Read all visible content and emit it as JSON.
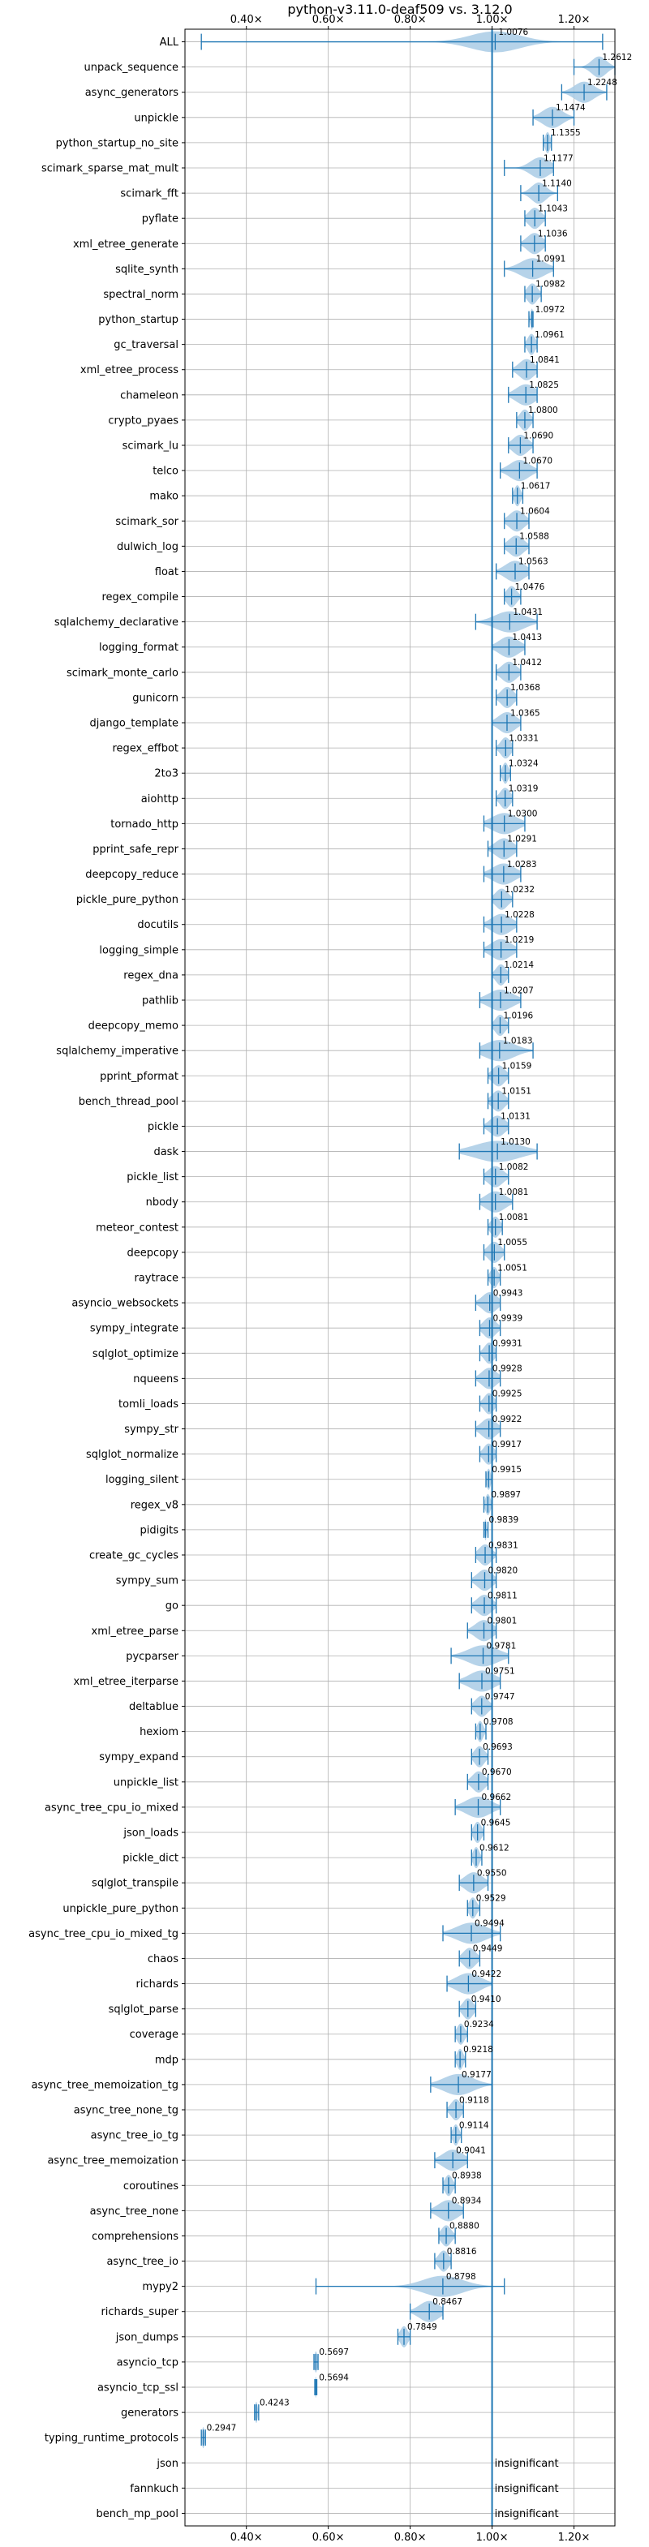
{
  "chart_data": {
    "type": "violin",
    "title": "python-v3.11.0-deaf509 vs. 3.12.0",
    "xlim": [
      0.25,
      1.3
    ],
    "x_ticks": [
      {
        "value": 0.4,
        "label": "0.40×"
      },
      {
        "value": 0.6,
        "label": "0.60×"
      },
      {
        "value": 0.8,
        "label": "0.80×"
      },
      {
        "value": 1.0,
        "label": "1.00×"
      },
      {
        "value": 1.2,
        "label": "1.20×"
      }
    ],
    "reference_line": 1.0,
    "grid": true,
    "colors": {
      "violin": "#a9cbe5",
      "whisker": "#1f77b4",
      "axis": "#000000",
      "grid": "#b0b0b0"
    },
    "insignificant_label": "insignificant",
    "benchmarks": [
      {
        "name": "ALL",
        "value": 1.0076,
        "label": "1.0076",
        "min": 0.29,
        "max": 1.27,
        "spread": 0.1
      },
      {
        "name": "unpack_sequence",
        "value": 1.2612,
        "label": "1.2612",
        "min": 1.2,
        "max": 1.3,
        "spread": 0.03
      },
      {
        "name": "async_generators",
        "value": 1.2248,
        "label": "1.2248",
        "min": 1.17,
        "max": 1.28,
        "spread": 0.04
      },
      {
        "name": "unpickle",
        "value": 1.1474,
        "label": "1.1474",
        "min": 1.1,
        "max": 1.2,
        "spread": 0.04
      },
      {
        "name": "python_startup_no_site",
        "value": 1.1355,
        "label": "1.1355",
        "min": 1.125,
        "max": 1.145,
        "spread": 0.01
      },
      {
        "name": "scimark_sparse_mat_mult",
        "value": 1.1177,
        "label": "1.1177",
        "min": 1.03,
        "max": 1.15,
        "spread": 0.04
      },
      {
        "name": "scimark_fft",
        "value": 1.114,
        "label": "1.1140",
        "min": 1.07,
        "max": 1.16,
        "spread": 0.03
      },
      {
        "name": "pyflate",
        "value": 1.1043,
        "label": "1.1043",
        "min": 1.08,
        "max": 1.13,
        "spread": 0.025
      },
      {
        "name": "xml_etree_generate",
        "value": 1.1036,
        "label": "1.1036",
        "min": 1.07,
        "max": 1.13,
        "spread": 0.03
      },
      {
        "name": "sqlite_synth",
        "value": 1.0991,
        "label": "1.0991",
        "min": 1.03,
        "max": 1.15,
        "spread": 0.05
      },
      {
        "name": "spectral_norm",
        "value": 1.0982,
        "label": "1.0982",
        "min": 1.08,
        "max": 1.12,
        "spread": 0.02
      },
      {
        "name": "python_startup",
        "value": 1.0972,
        "label": "1.0972",
        "min": 1.09,
        "max": 1.1,
        "spread": 0.006
      },
      {
        "name": "gc_traversal",
        "value": 1.0961,
        "label": "1.0961",
        "min": 1.08,
        "max": 1.11,
        "spread": 0.015
      },
      {
        "name": "xml_etree_process",
        "value": 1.0841,
        "label": "1.0841",
        "min": 1.05,
        "max": 1.11,
        "spread": 0.03
      },
      {
        "name": "chameleon",
        "value": 1.0825,
        "label": "1.0825",
        "min": 1.04,
        "max": 1.11,
        "spread": 0.04
      },
      {
        "name": "crypto_pyaes",
        "value": 1.08,
        "label": "1.0800",
        "min": 1.06,
        "max": 1.1,
        "spread": 0.02
      },
      {
        "name": "scimark_lu",
        "value": 1.069,
        "label": "1.0690",
        "min": 1.04,
        "max": 1.1,
        "spread": 0.03
      },
      {
        "name": "telco",
        "value": 1.067,
        "label": "1.0670",
        "min": 1.02,
        "max": 1.11,
        "spread": 0.04
      },
      {
        "name": "mako",
        "value": 1.0617,
        "label": "1.0617",
        "min": 1.05,
        "max": 1.075,
        "spread": 0.012
      },
      {
        "name": "scimark_sor",
        "value": 1.0604,
        "label": "1.0604",
        "min": 1.03,
        "max": 1.09,
        "spread": 0.03
      },
      {
        "name": "dulwich_log",
        "value": 1.0588,
        "label": "1.0588",
        "min": 1.03,
        "max": 1.09,
        "spread": 0.03
      },
      {
        "name": "float",
        "value": 1.0563,
        "label": "1.0563",
        "min": 1.01,
        "max": 1.09,
        "spread": 0.04
      },
      {
        "name": "regex_compile",
        "value": 1.0476,
        "label": "1.0476",
        "min": 1.03,
        "max": 1.07,
        "spread": 0.02
      },
      {
        "name": "sqlalchemy_declarative",
        "value": 1.0431,
        "label": "1.0431",
        "min": 0.96,
        "max": 1.11,
        "spread": 0.06
      },
      {
        "name": "logging_format",
        "value": 1.0413,
        "label": "1.0413",
        "min": 1.0,
        "max": 1.08,
        "spread": 0.04
      },
      {
        "name": "scimark_monte_carlo",
        "value": 1.0412,
        "label": "1.0412",
        "min": 1.01,
        "max": 1.07,
        "spread": 0.03
      },
      {
        "name": "gunicorn",
        "value": 1.0368,
        "label": "1.0368",
        "min": 1.01,
        "max": 1.06,
        "spread": 0.025
      },
      {
        "name": "django_template",
        "value": 1.0365,
        "label": "1.0365",
        "min": 1.0,
        "max": 1.07,
        "spread": 0.035
      },
      {
        "name": "regex_effbot",
        "value": 1.0331,
        "label": "1.0331",
        "min": 1.01,
        "max": 1.05,
        "spread": 0.02
      },
      {
        "name": "2to3",
        "value": 1.0324,
        "label": "1.0324",
        "min": 1.02,
        "max": 1.045,
        "spread": 0.012
      },
      {
        "name": "aiohttp",
        "value": 1.0319,
        "label": "1.0319",
        "min": 1.01,
        "max": 1.05,
        "spread": 0.02
      },
      {
        "name": "tornado_http",
        "value": 1.03,
        "label": "1.0300",
        "min": 0.98,
        "max": 1.08,
        "spread": 0.05
      },
      {
        "name": "pprint_safe_repr",
        "value": 1.0291,
        "label": "1.0291",
        "min": 0.99,
        "max": 1.06,
        "spread": 0.035
      },
      {
        "name": "deepcopy_reduce",
        "value": 1.0283,
        "label": "1.0283",
        "min": 0.98,
        "max": 1.07,
        "spread": 0.045
      },
      {
        "name": "pickle_pure_python",
        "value": 1.0232,
        "label": "1.0232",
        "min": 1.0,
        "max": 1.05,
        "spread": 0.025
      },
      {
        "name": "docutils",
        "value": 1.0228,
        "label": "1.0228",
        "min": 0.98,
        "max": 1.06,
        "spread": 0.04
      },
      {
        "name": "logging_simple",
        "value": 1.0219,
        "label": "1.0219",
        "min": 0.98,
        "max": 1.06,
        "spread": 0.04
      },
      {
        "name": "regex_dna",
        "value": 1.0214,
        "label": "1.0214",
        "min": 1.0,
        "max": 1.04,
        "spread": 0.02
      },
      {
        "name": "pathlib",
        "value": 1.0207,
        "label": "1.0207",
        "min": 0.97,
        "max": 1.07,
        "spread": 0.05
      },
      {
        "name": "deepcopy_memo",
        "value": 1.0196,
        "label": "1.0196",
        "min": 1.0,
        "max": 1.04,
        "spread": 0.02
      },
      {
        "name": "sqlalchemy_imperative",
        "value": 1.0183,
        "label": "1.0183",
        "min": 0.97,
        "max": 1.1,
        "spread": 0.06
      },
      {
        "name": "pprint_pformat",
        "value": 1.0159,
        "label": "1.0159",
        "min": 0.99,
        "max": 1.04,
        "spread": 0.025
      },
      {
        "name": "bench_thread_pool",
        "value": 1.0151,
        "label": "1.0151",
        "min": 0.99,
        "max": 1.04,
        "spread": 0.025
      },
      {
        "name": "pickle",
        "value": 1.0131,
        "label": "1.0131",
        "min": 0.98,
        "max": 1.04,
        "spread": 0.03
      },
      {
        "name": "dask",
        "value": 1.013,
        "label": "1.0130",
        "min": 0.92,
        "max": 1.11,
        "spread": 0.09
      },
      {
        "name": "pickle_list",
        "value": 1.0082,
        "label": "1.0082",
        "min": 0.98,
        "max": 1.04,
        "spread": 0.03
      },
      {
        "name": "nbody",
        "value": 1.0081,
        "label": "1.0081",
        "min": 0.97,
        "max": 1.05,
        "spread": 0.04
      },
      {
        "name": "meteor_contest",
        "value": 1.0081,
        "label": "1.0081",
        "min": 0.99,
        "max": 1.025,
        "spread": 0.018
      },
      {
        "name": "deepcopy",
        "value": 1.0055,
        "label": "1.0055",
        "min": 0.98,
        "max": 1.03,
        "spread": 0.025
      },
      {
        "name": "raytrace",
        "value": 1.0051,
        "label": "1.0051",
        "min": 0.99,
        "max": 1.02,
        "spread": 0.015
      },
      {
        "name": "asyncio_websockets",
        "value": 0.9943,
        "label": "0.9943",
        "min": 0.96,
        "max": 1.02,
        "spread": 0.03
      },
      {
        "name": "sympy_integrate",
        "value": 0.9939,
        "label": "0.9939",
        "min": 0.97,
        "max": 1.02,
        "spread": 0.025
      },
      {
        "name": "sqlglot_optimize",
        "value": 0.9931,
        "label": "0.9931",
        "min": 0.97,
        "max": 1.01,
        "spread": 0.02
      },
      {
        "name": "nqueens",
        "value": 0.9928,
        "label": "0.9928",
        "min": 0.96,
        "max": 1.02,
        "spread": 0.03
      },
      {
        "name": "tomli_loads",
        "value": 0.9925,
        "label": "0.9925",
        "min": 0.97,
        "max": 1.01,
        "spread": 0.02
      },
      {
        "name": "sympy_str",
        "value": 0.9922,
        "label": "0.9922",
        "min": 0.96,
        "max": 1.02,
        "spread": 0.03
      },
      {
        "name": "sqlglot_normalize",
        "value": 0.9917,
        "label": "0.9917",
        "min": 0.97,
        "max": 1.01,
        "spread": 0.02
      },
      {
        "name": "logging_silent",
        "value": 0.9915,
        "label": "0.9915",
        "min": 0.985,
        "max": 1.0,
        "spread": 0.008
      },
      {
        "name": "regex_v8",
        "value": 0.9897,
        "label": "0.9897",
        "min": 0.98,
        "max": 1.0,
        "spread": 0.01
      },
      {
        "name": "pidigits",
        "value": 0.9839,
        "label": "0.9839",
        "min": 0.98,
        "max": 0.99,
        "spread": 0.004
      },
      {
        "name": "create_gc_cycles",
        "value": 0.9831,
        "label": "0.9831",
        "min": 0.96,
        "max": 1.01,
        "spread": 0.025
      },
      {
        "name": "sympy_sum",
        "value": 0.982,
        "label": "0.9820",
        "min": 0.95,
        "max": 1.01,
        "spread": 0.03
      },
      {
        "name": "go",
        "value": 0.9811,
        "label": "0.9811",
        "min": 0.95,
        "max": 1.01,
        "spread": 0.03
      },
      {
        "name": "xml_etree_parse",
        "value": 0.9801,
        "label": "0.9801",
        "min": 0.94,
        "max": 1.01,
        "spread": 0.035
      },
      {
        "name": "pycparser",
        "value": 0.9781,
        "label": "0.9781",
        "min": 0.9,
        "max": 1.04,
        "spread": 0.06
      },
      {
        "name": "xml_etree_iterparse",
        "value": 0.9751,
        "label": "0.9751",
        "min": 0.92,
        "max": 1.02,
        "spread": 0.05
      },
      {
        "name": "deltablue",
        "value": 0.9747,
        "label": "0.9747",
        "min": 0.95,
        "max": 1.0,
        "spread": 0.025
      },
      {
        "name": "hexiom",
        "value": 0.9708,
        "label": "0.9708",
        "min": 0.96,
        "max": 0.985,
        "spread": 0.012
      },
      {
        "name": "sympy_expand",
        "value": 0.9693,
        "label": "0.9693",
        "min": 0.95,
        "max": 0.99,
        "spread": 0.02
      },
      {
        "name": "unpickle_list",
        "value": 0.967,
        "label": "0.9670",
        "min": 0.94,
        "max": 0.99,
        "spread": 0.025
      },
      {
        "name": "async_tree_cpu_io_mixed",
        "value": 0.9662,
        "label": "0.9662",
        "min": 0.91,
        "max": 1.02,
        "spread": 0.05
      },
      {
        "name": "json_loads",
        "value": 0.9645,
        "label": "0.9645",
        "min": 0.95,
        "max": 0.98,
        "spread": 0.015
      },
      {
        "name": "pickle_dict",
        "value": 0.9612,
        "label": "0.9612",
        "min": 0.95,
        "max": 0.975,
        "spread": 0.012
      },
      {
        "name": "sqlglot_transpile",
        "value": 0.955,
        "label": "0.9550",
        "min": 0.92,
        "max": 0.99,
        "spread": 0.035
      },
      {
        "name": "unpickle_pure_python",
        "value": 0.9529,
        "label": "0.9529",
        "min": 0.94,
        "max": 0.97,
        "spread": 0.015
      },
      {
        "name": "async_tree_cpu_io_mixed_tg",
        "value": 0.9494,
        "label": "0.9494",
        "min": 0.88,
        "max": 1.02,
        "spread": 0.06
      },
      {
        "name": "chaos",
        "value": 0.9449,
        "label": "0.9449",
        "min": 0.92,
        "max": 0.97,
        "spread": 0.025
      },
      {
        "name": "richards",
        "value": 0.9422,
        "label": "0.9422",
        "min": 0.89,
        "max": 1.0,
        "spread": 0.05
      },
      {
        "name": "sqlglot_parse",
        "value": 0.941,
        "label": "0.9410",
        "min": 0.92,
        "max": 0.96,
        "spread": 0.02
      },
      {
        "name": "coverage",
        "value": 0.9234,
        "label": "0.9234",
        "min": 0.91,
        "max": 0.94,
        "spread": 0.015
      },
      {
        "name": "mdp",
        "value": 0.9218,
        "label": "0.9218",
        "min": 0.91,
        "max": 0.935,
        "spread": 0.012
      },
      {
        "name": "async_tree_memoization_tg",
        "value": 0.9177,
        "label": "0.9177",
        "min": 0.85,
        "max": 1.0,
        "spread": 0.06
      },
      {
        "name": "async_tree_none_tg",
        "value": 0.9118,
        "label": "0.9118",
        "min": 0.89,
        "max": 0.93,
        "spread": 0.02
      },
      {
        "name": "async_tree_io_tg",
        "value": 0.9114,
        "label": "0.9114",
        "min": 0.9,
        "max": 0.925,
        "spread": 0.012
      },
      {
        "name": "async_tree_memoization",
        "value": 0.9041,
        "label": "0.9041",
        "min": 0.86,
        "max": 0.94,
        "spread": 0.04
      },
      {
        "name": "coroutines",
        "value": 0.8938,
        "label": "0.8938",
        "min": 0.88,
        "max": 0.91,
        "spread": 0.015
      },
      {
        "name": "async_tree_none",
        "value": 0.8934,
        "label": "0.8934",
        "min": 0.85,
        "max": 0.93,
        "spread": 0.04
      },
      {
        "name": "comprehensions",
        "value": 0.888,
        "label": "0.8880",
        "min": 0.87,
        "max": 0.91,
        "spread": 0.02
      },
      {
        "name": "async_tree_io",
        "value": 0.8816,
        "label": "0.8816",
        "min": 0.86,
        "max": 0.9,
        "spread": 0.02
      },
      {
        "name": "mypy2",
        "value": 0.8798,
        "label": "0.8798",
        "min": 0.57,
        "max": 1.03,
        "spread": 0.08
      },
      {
        "name": "richards_super",
        "value": 0.8467,
        "label": "0.8467",
        "min": 0.8,
        "max": 0.88,
        "spread": 0.04
      },
      {
        "name": "json_dumps",
        "value": 0.7849,
        "label": "0.7849",
        "min": 0.77,
        "max": 0.8,
        "spread": 0.015
      },
      {
        "name": "asyncio_tcp",
        "value": 0.5697,
        "label": "0.5697",
        "min": 0.565,
        "max": 0.575,
        "spread": 0.006
      },
      {
        "name": "asyncio_tcp_ssl",
        "value": 0.5694,
        "label": "0.5694",
        "min": 0.567,
        "max": 0.572,
        "spread": 0.003
      },
      {
        "name": "generators",
        "value": 0.4243,
        "label": "0.4243",
        "min": 0.42,
        "max": 0.43,
        "spread": 0.005
      },
      {
        "name": "typing_runtime_protocols",
        "value": 0.2947,
        "label": "0.2947",
        "min": 0.29,
        "max": 0.3,
        "spread": 0.005
      },
      {
        "name": "json",
        "value": null,
        "label": "",
        "insignificant": true
      },
      {
        "name": "fannkuch",
        "value": null,
        "label": "",
        "insignificant": true
      },
      {
        "name": "bench_mp_pool",
        "value": null,
        "label": "",
        "insignificant": true
      }
    ]
  }
}
